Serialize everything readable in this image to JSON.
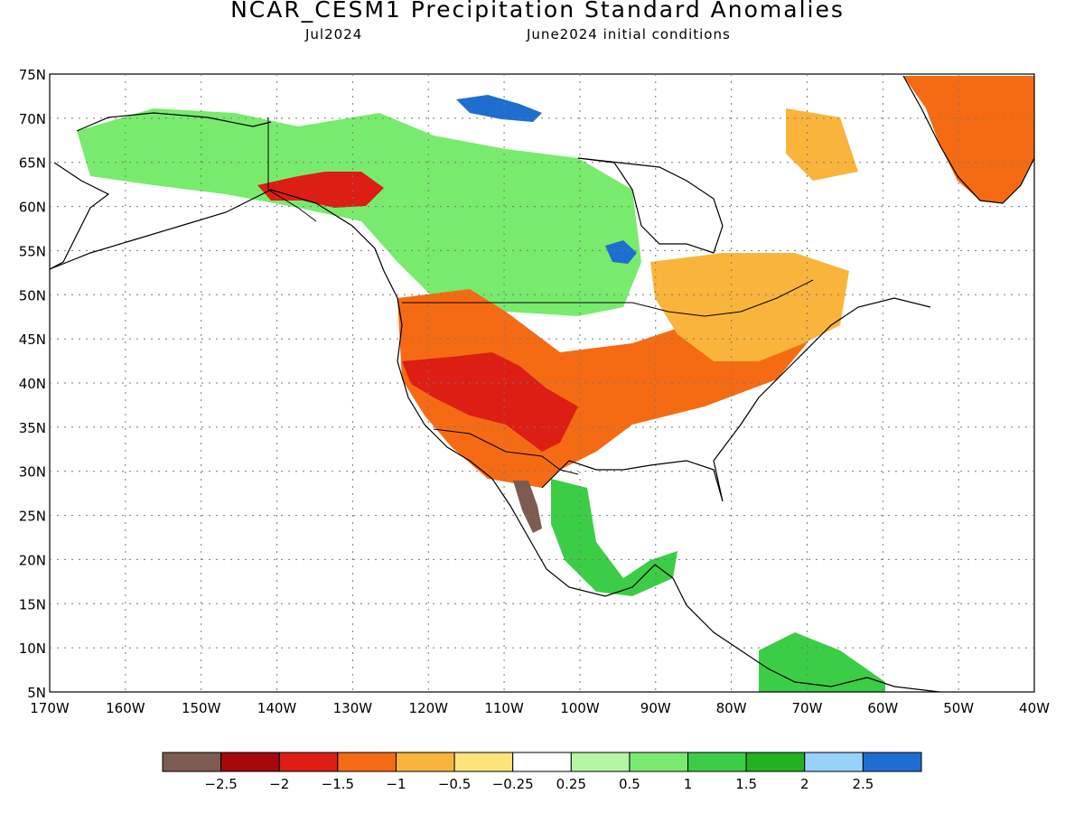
{
  "header": {
    "title": "NCAR_CESM1 Precipitation Standard Anomalies",
    "valid_month": "Jul2024",
    "init_conditions": "June2024 initial conditions"
  },
  "map": {
    "lat_range": [
      5,
      75
    ],
    "lon_range": [
      -170,
      -40
    ],
    "lat_ticks": [
      "5N",
      "10N",
      "15N",
      "20N",
      "25N",
      "30N",
      "35N",
      "40N",
      "45N",
      "50N",
      "55N",
      "60N",
      "65N",
      "70N",
      "75N"
    ],
    "lon_ticks": [
      "170W",
      "160W",
      "150W",
      "140W",
      "130W",
      "120W",
      "110W",
      "100W",
      "90W",
      "80W",
      "70W",
      "60W",
      "50W",
      "40W"
    ]
  },
  "colorbar": {
    "colors": [
      "#7d5b52",
      "#a50a0a",
      "#dc1e14",
      "#f56b14",
      "#f9b43c",
      "#fbe47a",
      "#ffffff",
      "#b4f5a6",
      "#78eb6e",
      "#3ccd46",
      "#1fb21e",
      "#96d2fa",
      "#1e6ed2"
    ],
    "labels": [
      "−2.5",
      "−2",
      "−1.5",
      "−1",
      "−0.5",
      "−0.25",
      "0.25",
      "0.5",
      "1",
      "1.5",
      "2",
      "2.5"
    ]
  },
  "anomaly_regions": [
    {
      "name": "greenland-east-dry",
      "color": "#f56b14"
    },
    {
      "name": "canada-west-wet",
      "color": "#78eb6e"
    },
    {
      "name": "yukon-dry",
      "color": "#dc1e14"
    },
    {
      "name": "us-west-dry",
      "color": "#f56b14"
    },
    {
      "name": "great-basin-very-dry",
      "color": "#dc1e14"
    },
    {
      "name": "mexico-extreme-dry",
      "color": "#7d5b52"
    },
    {
      "name": "hudson-bay-wet",
      "color": "#1e6ed2"
    },
    {
      "name": "quebec-dry",
      "color": "#f9b43c"
    },
    {
      "name": "central-america-wet",
      "color": "#3ccd46"
    }
  ]
}
